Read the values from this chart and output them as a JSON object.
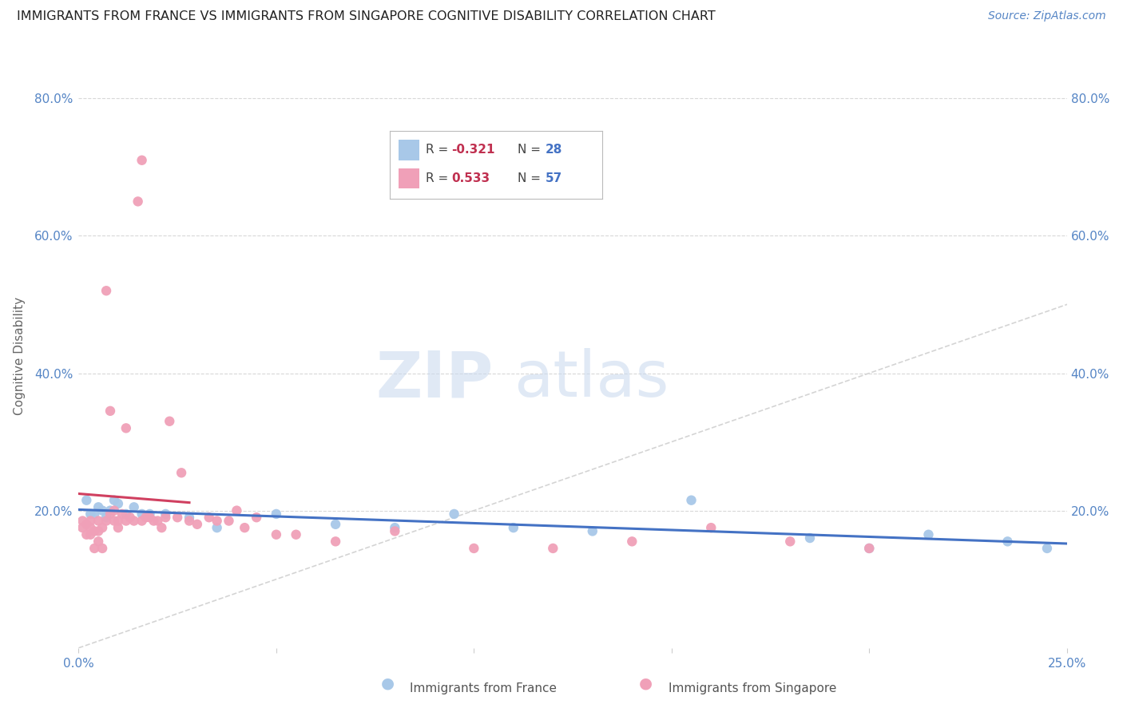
{
  "title": "IMMIGRANTS FROM FRANCE VS IMMIGRANTS FROM SINGAPORE COGNITIVE DISABILITY CORRELATION CHART",
  "source": "Source: ZipAtlas.com",
  "ylabel": "Cognitive Disability",
  "xlim": [
    0.0,
    0.25
  ],
  "ylim": [
    0.0,
    0.85
  ],
  "yticks": [
    0.2,
    0.4,
    0.6,
    0.8
  ],
  "ytick_labels": [
    "20.0%",
    "40.0%",
    "60.0%",
    "80.0%"
  ],
  "xticks": [
    0.0,
    0.05,
    0.1,
    0.15,
    0.2,
    0.25
  ],
  "xtick_labels": [
    "0.0%",
    "",
    "",
    "",
    "",
    "25.0%"
  ],
  "france_color": "#a8c8e8",
  "singapore_color": "#f0a0b8",
  "france_line_color": "#4472c4",
  "singapore_line_color": "#d04060",
  "diagonal_color": "#d0d0d0",
  "legend_france_R": "-0.321",
  "legend_france_N": "28",
  "legend_singapore_R": "0.533",
  "legend_singapore_N": "57",
  "france_label": "Immigrants from France",
  "singapore_label": "Immigrants from Singapore",
  "watermark_zip": "ZIP",
  "watermark_atlas": "atlas",
  "france_scatter_x": [
    0.002,
    0.003,
    0.004,
    0.005,
    0.006,
    0.007,
    0.008,
    0.009,
    0.01,
    0.012,
    0.014,
    0.016,
    0.018,
    0.022,
    0.028,
    0.035,
    0.05,
    0.065,
    0.08,
    0.095,
    0.11,
    0.13,
    0.155,
    0.185,
    0.2,
    0.215,
    0.235,
    0.245
  ],
  "france_scatter_y": [
    0.215,
    0.195,
    0.195,
    0.205,
    0.2,
    0.19,
    0.2,
    0.215,
    0.21,
    0.195,
    0.205,
    0.195,
    0.195,
    0.195,
    0.19,
    0.175,
    0.195,
    0.18,
    0.175,
    0.195,
    0.175,
    0.17,
    0.215,
    0.16,
    0.145,
    0.165,
    0.155,
    0.145
  ],
  "singapore_scatter_x": [
    0.001,
    0.001,
    0.002,
    0.002,
    0.003,
    0.003,
    0.003,
    0.004,
    0.004,
    0.005,
    0.005,
    0.005,
    0.006,
    0.006,
    0.007,
    0.007,
    0.008,
    0.008,
    0.009,
    0.009,
    0.01,
    0.01,
    0.011,
    0.012,
    0.012,
    0.013,
    0.014,
    0.015,
    0.016,
    0.016,
    0.017,
    0.018,
    0.019,
    0.02,
    0.021,
    0.022,
    0.023,
    0.025,
    0.026,
    0.028,
    0.03,
    0.033,
    0.035,
    0.038,
    0.04,
    0.042,
    0.045,
    0.05,
    0.055,
    0.065,
    0.08,
    0.1,
    0.12,
    0.14,
    0.16,
    0.18,
    0.2
  ],
  "singapore_scatter_y": [
    0.185,
    0.175,
    0.18,
    0.165,
    0.175,
    0.185,
    0.165,
    0.17,
    0.145,
    0.17,
    0.185,
    0.155,
    0.175,
    0.145,
    0.52,
    0.185,
    0.195,
    0.345,
    0.2,
    0.185,
    0.185,
    0.175,
    0.195,
    0.185,
    0.32,
    0.19,
    0.185,
    0.65,
    0.185,
    0.71,
    0.19,
    0.19,
    0.185,
    0.185,
    0.175,
    0.19,
    0.33,
    0.19,
    0.255,
    0.185,
    0.18,
    0.19,
    0.185,
    0.185,
    0.2,
    0.175,
    0.19,
    0.165,
    0.165,
    0.155,
    0.17,
    0.145,
    0.145,
    0.155,
    0.175,
    0.155,
    0.145
  ]
}
